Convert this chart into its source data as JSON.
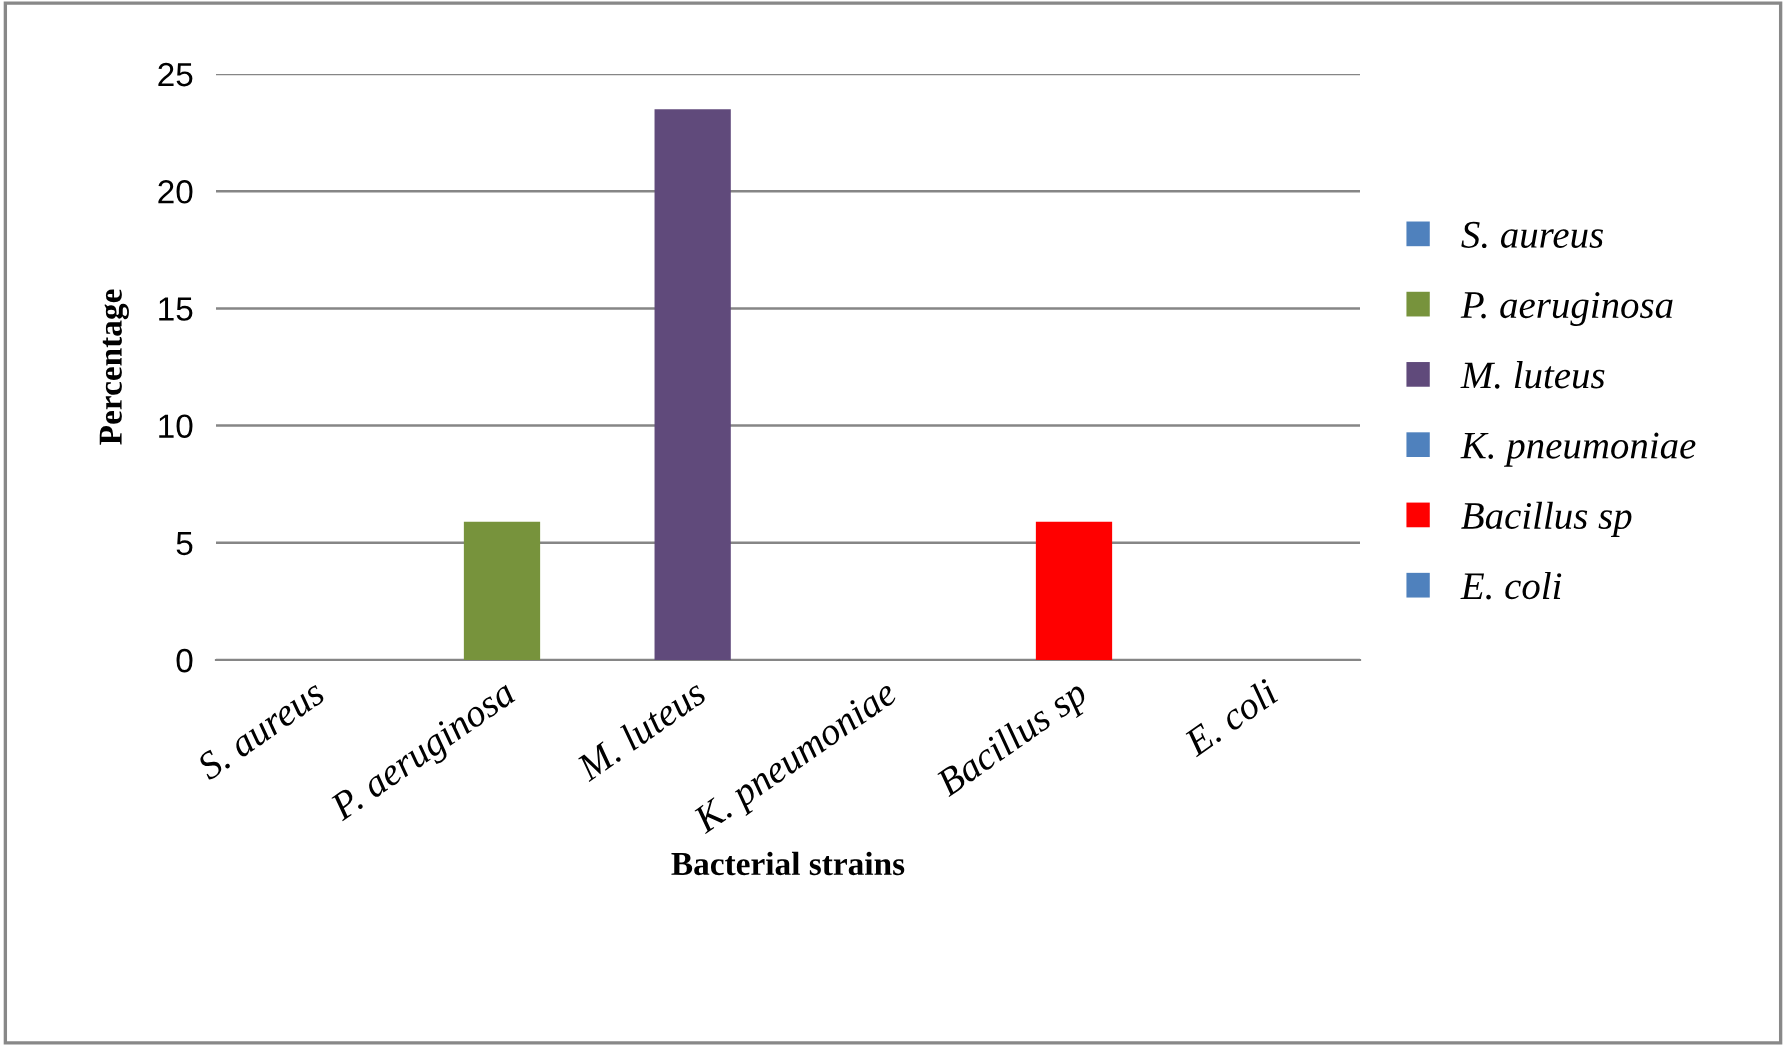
{
  "chart_data": {
    "type": "bar",
    "xlabel": "Bacterial strains",
    "ylabel": "Percentage",
    "categories": [
      "S. aureus",
      "P. aeruginosa",
      "M. luteus",
      "K. pneumoniae",
      "Bacillus sp",
      "E. coli"
    ],
    "series": [
      {
        "name": "S. aureus",
        "color": "#4f81bd",
        "values": [
          0,
          null,
          null,
          null,
          null,
          null
        ]
      },
      {
        "name": "P. aeruginosa",
        "color": "#77933c",
        "values": [
          null,
          5.9,
          null,
          null,
          null,
          null
        ]
      },
      {
        "name": "M. luteus",
        "color": "#604a7b",
        "values": [
          null,
          null,
          23.5,
          null,
          null,
          null
        ]
      },
      {
        "name": "K. pneumoniae",
        "color": "#4f81bd",
        "values": [
          null,
          null,
          null,
          0,
          null,
          null
        ]
      },
      {
        "name": "Bacillus sp",
        "color": "#ff0000",
        "values": [
          null,
          null,
          null,
          null,
          5.9,
          null
        ]
      },
      {
        "name": "E. coli",
        "color": "#4f81bd",
        "values": [
          null,
          null,
          null,
          null,
          null,
          0
        ]
      }
    ],
    "ylim": [
      0,
      25
    ],
    "yticks": [
      0,
      5,
      10,
      15,
      20,
      25
    ],
    "grid": "y",
    "legend": "right"
  }
}
